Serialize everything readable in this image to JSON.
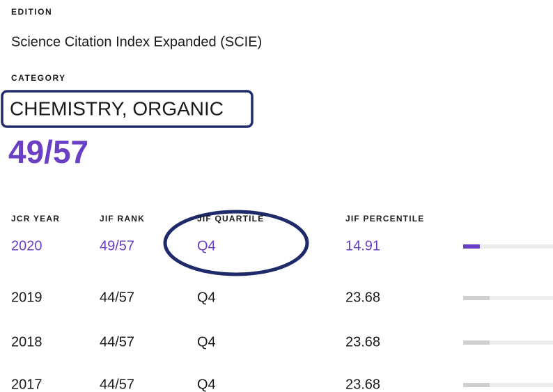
{
  "edition_label": "EDITION",
  "edition": "Science Citation Index Expanded (SCIE)",
  "category_label": "CATEGORY",
  "category": "CHEMISTRY, ORGANIC",
  "rank": "49/57",
  "table": {
    "headers": [
      "JCR YEAR",
      "JIF RANK",
      "JIF QUARTILE",
      "JIF PERCENTILE"
    ],
    "rows": [
      [
        2020,
        "49/57",
        "Q4",
        14.91
      ],
      [
        2019,
        "44/57",
        "Q4",
        23.68
      ],
      [
        2018,
        "44/57",
        "Q4",
        23.68
      ],
      [
        2017,
        "44/57",
        "Q4",
        23.68
      ]
    ]
  }
}
